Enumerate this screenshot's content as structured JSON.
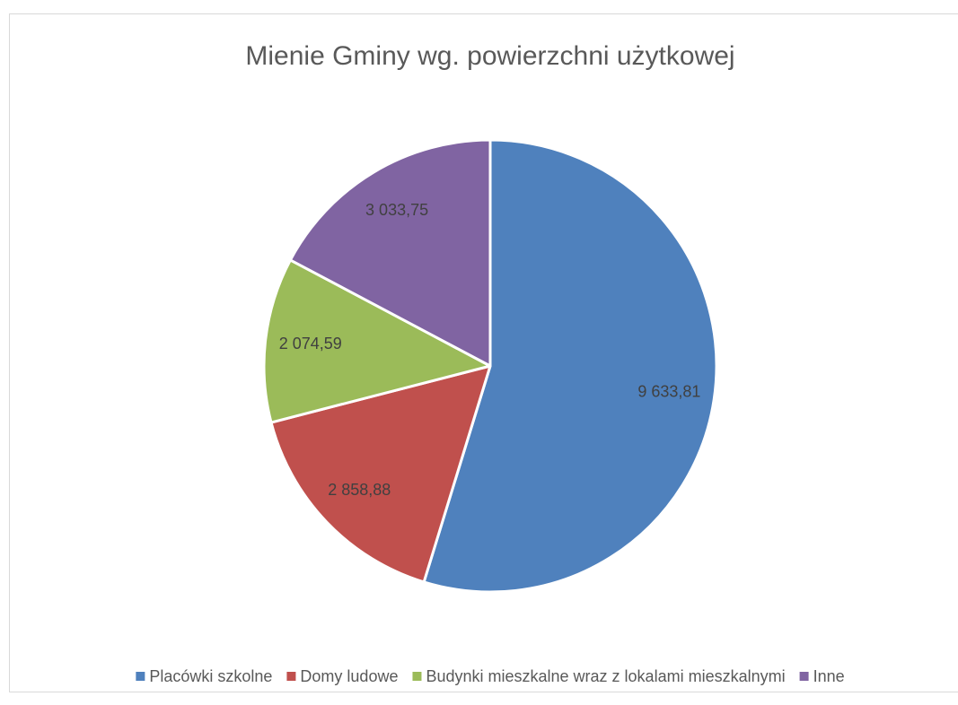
{
  "chart_data": {
    "type": "pie",
    "title": "Mienie Gminy wg. powierzchni użytkowej",
    "categories": [
      "Placówki szkolne",
      "Domy ludowe",
      "Budynki mieszkalne wraz z lokalami mieszkalnymi",
      "Inne"
    ],
    "values": [
      9633.81,
      2858.88,
      2074.59,
      3033.75
    ],
    "value_labels": [
      "9 633,81",
      "2 858,88",
      "2 074,59",
      "3 033,75"
    ],
    "colors": [
      "#4f81bd",
      "#c0504d",
      "#9bbb59",
      "#8064a2"
    ],
    "legend": "bottom"
  }
}
